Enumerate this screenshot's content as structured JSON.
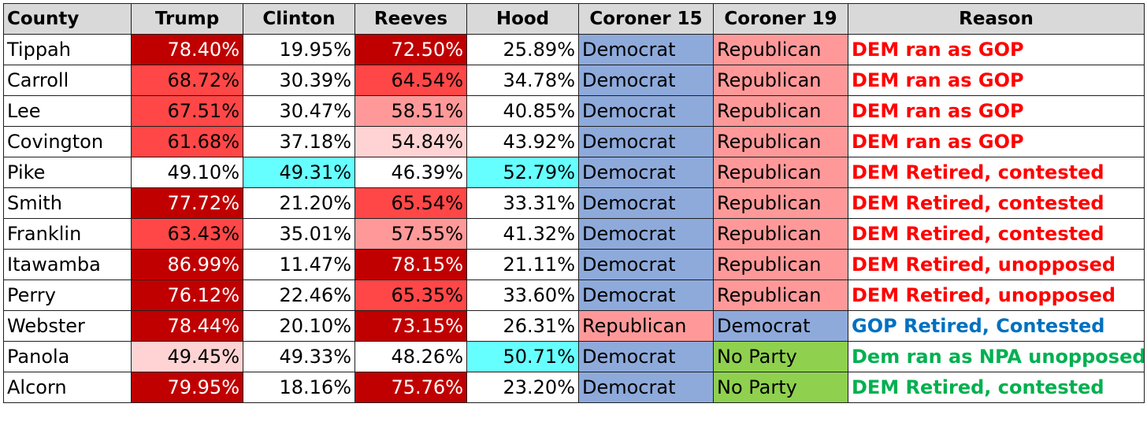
{
  "headers": [
    "County",
    "Trump",
    "Clinton",
    "Reeves",
    "Hood",
    "Coroner 15",
    "Coroner 19",
    "Reason"
  ],
  "colors": {
    "red_dark": "#c00000",
    "red_mid": "#ff4747",
    "red_light": "#ff9999",
    "red_pale": "#ffd3d3",
    "cyan": "#66ffff",
    "democrat_blue": "#8eaadb",
    "republican_pink": "#ff9999",
    "no_party_green": "#8fd14f",
    "reason_red": "#ff0000",
    "reason_blue": "#0070c0",
    "reason_green": "#00b050"
  },
  "rows": [
    {
      "county": "Tippah",
      "trump": "78.40%",
      "trump_shade": "red-dark",
      "clinton": "19.95%",
      "clinton_shade": "white",
      "reeves": "72.50%",
      "reeves_shade": "red-dark",
      "hood": "25.89%",
      "hood_shade": "white",
      "coroner15": "Democrat",
      "coroner19": "Republican",
      "reason": "DEM ran as GOP",
      "reason_color": "red"
    },
    {
      "county": "Carroll",
      "trump": "68.72%",
      "trump_shade": "red-mid",
      "clinton": "30.39%",
      "clinton_shade": "white",
      "reeves": "64.54%",
      "reeves_shade": "red-mid",
      "hood": "34.78%",
      "hood_shade": "white",
      "coroner15": "Democrat",
      "coroner19": "Republican",
      "reason": "DEM ran as GOP",
      "reason_color": "red"
    },
    {
      "county": "Lee",
      "trump": "67.51%",
      "trump_shade": "red-mid",
      "clinton": "30.47%",
      "clinton_shade": "white",
      "reeves": "58.51%",
      "reeves_shade": "red-light",
      "hood": "40.85%",
      "hood_shade": "white",
      "coroner15": "Democrat",
      "coroner19": "Republican",
      "reason": "DEM ran as GOP",
      "reason_color": "red"
    },
    {
      "county": "Covington",
      "trump": "61.68%",
      "trump_shade": "red-mid",
      "clinton": "37.18%",
      "clinton_shade": "white",
      "reeves": "54.84%",
      "reeves_shade": "red-pale",
      "hood": "43.92%",
      "hood_shade": "white",
      "coroner15": "Democrat",
      "coroner19": "Republican",
      "reason": "DEM ran as GOP",
      "reason_color": "red"
    },
    {
      "county": "Pike",
      "trump": "49.10%",
      "trump_shade": "white",
      "clinton": "49.31%",
      "clinton_shade": "cyan",
      "reeves": "46.39%",
      "reeves_shade": "white",
      "hood": "52.79%",
      "hood_shade": "cyan",
      "coroner15": "Democrat",
      "coroner19": "Republican",
      "reason": "DEM Retired, contested",
      "reason_color": "red"
    },
    {
      "county": "Smith",
      "trump": "77.72%",
      "trump_shade": "red-dark",
      "clinton": "21.20%",
      "clinton_shade": "white",
      "reeves": "65.54%",
      "reeves_shade": "red-mid",
      "hood": "33.31%",
      "hood_shade": "white",
      "coroner15": "Democrat",
      "coroner19": "Republican",
      "reason": "DEM Retired, contested",
      "reason_color": "red"
    },
    {
      "county": "Franklin",
      "trump": "63.43%",
      "trump_shade": "red-mid",
      "clinton": "35.01%",
      "clinton_shade": "white",
      "reeves": "57.55%",
      "reeves_shade": "red-light",
      "hood": "41.32%",
      "hood_shade": "white",
      "coroner15": "Democrat",
      "coroner19": "Republican",
      "reason": "DEM Retired, contested",
      "reason_color": "red"
    },
    {
      "county": "Itawamba",
      "trump": "86.99%",
      "trump_shade": "red-dark",
      "clinton": "11.47%",
      "clinton_shade": "white",
      "reeves": "78.15%",
      "reeves_shade": "red-dark",
      "hood": "21.11%",
      "hood_shade": "white",
      "coroner15": "Democrat",
      "coroner19": "Republican",
      "reason": "DEM Retired, unopposed",
      "reason_color": "red"
    },
    {
      "county": "Perry",
      "trump": "76.12%",
      "trump_shade": "red-dark",
      "clinton": "22.46%",
      "clinton_shade": "white",
      "reeves": "65.35%",
      "reeves_shade": "red-mid",
      "hood": "33.60%",
      "hood_shade": "white",
      "coroner15": "Democrat",
      "coroner19": "Republican",
      "reason": "DEM Retired, unopposed",
      "reason_color": "red"
    },
    {
      "county": "Webster",
      "trump": "78.44%",
      "trump_shade": "red-dark",
      "clinton": "20.10%",
      "clinton_shade": "white",
      "reeves": "73.15%",
      "reeves_shade": "red-dark",
      "hood": "26.31%",
      "hood_shade": "white",
      "coroner15": "Republican",
      "coroner19": "Democrat",
      "reason": "GOP Retired, Contested",
      "reason_color": "blue"
    },
    {
      "county": "Panola",
      "trump": "49.45%",
      "trump_shade": "red-pale",
      "clinton": "49.33%",
      "clinton_shade": "white",
      "reeves": "48.26%",
      "reeves_shade": "white",
      "hood": "50.71%",
      "hood_shade": "cyan",
      "coroner15": "Democrat",
      "coroner19": "No Party",
      "reason": "Dem ran as NPA unopposed",
      "reason_color": "green"
    },
    {
      "county": "Alcorn",
      "trump": "79.95%",
      "trump_shade": "red-dark",
      "clinton": "18.16%",
      "clinton_shade": "white",
      "reeves": "75.76%",
      "reeves_shade": "red-dark",
      "hood": "23.20%",
      "hood_shade": "white",
      "coroner15": "Democrat",
      "coroner19": "No Party",
      "reason": "DEM Retired, contested",
      "reason_color": "green"
    }
  ]
}
